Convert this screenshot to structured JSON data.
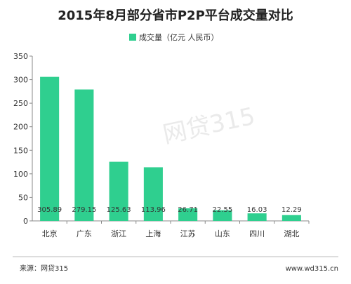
{
  "chart_data": {
    "type": "bar",
    "title": "2015年8月部分省市P2P平台成交量对比",
    "legend": "成交量（亿元 人民币）",
    "legend_position": "top-center",
    "categories": [
      "北京",
      "广东",
      "浙江",
      "上海",
      "江苏",
      "山东",
      "四川",
      "湖北"
    ],
    "series": [
      {
        "name": "成交量（亿元 人民币）",
        "values": [
          305.89,
          279.15,
          125.63,
          113.96,
          26.71,
          22.55,
          16.03,
          12.29
        ]
      }
    ],
    "value_labels": [
      "305.89",
      "279.15",
      "125.63",
      "113.96",
      "26.71",
      "22.55",
      "16.03",
      "12.29"
    ],
    "yticks": [
      "0",
      "50",
      "100",
      "150",
      "200",
      "250",
      "300",
      "350"
    ],
    "ylim": [
      0,
      350
    ],
    "grid": false,
    "colors": {
      "bar": "#2fcf8f"
    }
  },
  "footer": {
    "source": "来源：网贷315",
    "url": "www.wd315.cn"
  },
  "watermark": "网贷315"
}
